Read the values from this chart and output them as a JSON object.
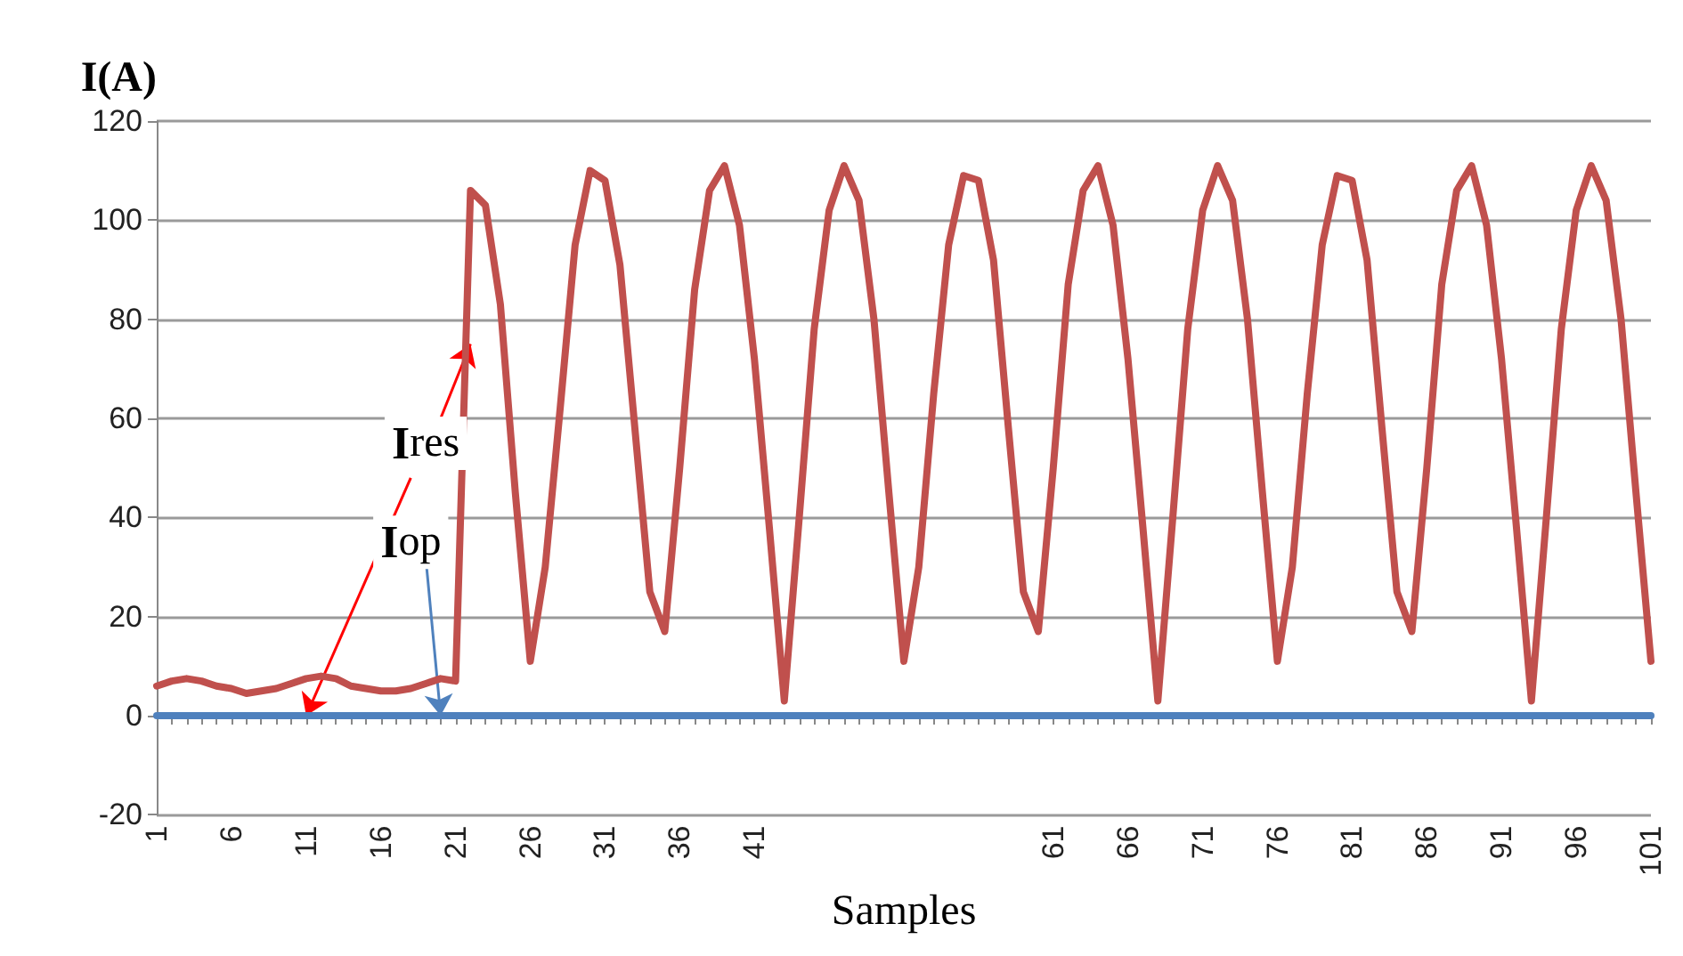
{
  "chart_data": {
    "type": "line",
    "ylabel": "I(A)",
    "xlabel": "Samples",
    "categories": [
      "1",
      null,
      null,
      null,
      null,
      "6",
      null,
      null,
      null,
      null,
      "11",
      null,
      null,
      null,
      null,
      "16",
      null,
      null,
      null,
      null,
      "21",
      null,
      null,
      null,
      null,
      "26",
      null,
      null,
      null,
      null,
      "31",
      null,
      null,
      null,
      null,
      "36",
      null,
      null,
      null,
      null,
      "41",
      null,
      null,
      null,
      null,
      null,
      null,
      null,
      null,
      null,
      null,
      null,
      null,
      null,
      null,
      null,
      null,
      null,
      null,
      null,
      "61",
      null,
      null,
      null,
      null,
      "66",
      null,
      null,
      null,
      null,
      "71",
      null,
      null,
      null,
      null,
      "76",
      null,
      null,
      null,
      null,
      "81",
      null,
      null,
      null,
      null,
      "86",
      null,
      null,
      null,
      null,
      "91",
      null,
      null,
      null,
      null,
      "96",
      null,
      null,
      null,
      null,
      "101"
    ],
    "series": [
      {
        "name": "Ires",
        "color": "#c0504d",
        "values": [
          6,
          7,
          7.5,
          7,
          6,
          5.5,
          4.5,
          5,
          5.5,
          6.5,
          7.5,
          8,
          7.5,
          6,
          5.5,
          5,
          5,
          5.5,
          6.5,
          7.5,
          7,
          106,
          103,
          83,
          45,
          11,
          30,
          62,
          95,
          110,
          108,
          91,
          58,
          25,
          17,
          50,
          86,
          106,
          111,
          99,
          72,
          38,
          3,
          40,
          78,
          102,
          111,
          104,
          80,
          45,
          11,
          30,
          65,
          95,
          109,
          108,
          92,
          58,
          25,
          17,
          50,
          87,
          106,
          111,
          99,
          72,
          38,
          3,
          40,
          78,
          102,
          111,
          104,
          80,
          45,
          11,
          30,
          65,
          95,
          109,
          108,
          92,
          58,
          25,
          17,
          50,
          87,
          106,
          111,
          99,
          72,
          38,
          3,
          40,
          78,
          102,
          111,
          104,
          80,
          45,
          11
        ]
      },
      {
        "name": "Iop",
        "color": "#4f81bd",
        "values": [
          0,
          0,
          0,
          0,
          0,
          0,
          0,
          0,
          0,
          0,
          0,
          0,
          0,
          0,
          0,
          0,
          0,
          0,
          0,
          0,
          0,
          0,
          0,
          0,
          0,
          0,
          0,
          0,
          0,
          0,
          0,
          0,
          0,
          0,
          0,
          0,
          0,
          0,
          0,
          0,
          0,
          0,
          0,
          0,
          0,
          0,
          0,
          0,
          0,
          0,
          0,
          0,
          0,
          0,
          0,
          0,
          0,
          0,
          0,
          0,
          0,
          0,
          0,
          0,
          0,
          0,
          0,
          0,
          0,
          0,
          0,
          0,
          0,
          0,
          0,
          0,
          0,
          0,
          0,
          0,
          0,
          0,
          0,
          0,
          0,
          0,
          0,
          0,
          0,
          0,
          0,
          0,
          0,
          0,
          0,
          0,
          0,
          0,
          0,
          0,
          0
        ]
      }
    ],
    "ylim": [
      -20,
      120
    ],
    "yticks": [
      -20,
      0,
      20,
      40,
      60,
      80,
      100,
      120
    ],
    "grid": "y",
    "legend": false,
    "marker": "none",
    "line_style": "solid"
  }
}
